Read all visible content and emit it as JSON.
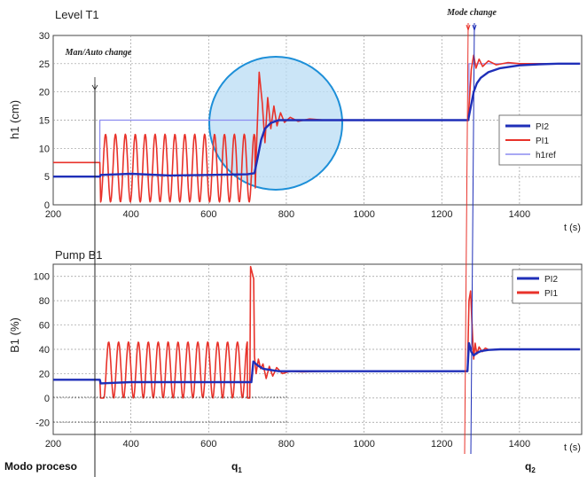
{
  "chart_data": [
    {
      "type": "line",
      "title": "Level T1",
      "ylabel": "h1 (cm)",
      "xlabel": "t (s)",
      "xlim": [
        200,
        1560
      ],
      "ylim": [
        0,
        30
      ],
      "xticks": [
        200,
        400,
        600,
        800,
        1000,
        1200,
        1400
      ],
      "yticks": [
        0,
        5,
        10,
        15,
        20,
        25,
        30
      ],
      "grid": true,
      "legend_position": "right",
      "series": [
        {
          "name": "PI2",
          "color": "#1f2fb8",
          "x": [
            200,
            320,
            322,
            400,
            500,
            600,
            700,
            718,
            725,
            735,
            745,
            760,
            780,
            800,
            840,
            900,
            1000,
            1100,
            1200,
            1268,
            1275,
            1282,
            1290,
            1300,
            1320,
            1350,
            1400,
            1450,
            1500,
            1556
          ],
          "y": [
            5,
            5,
            5.3,
            5.5,
            5.2,
            5.3,
            5.4,
            5.6,
            8,
            11.5,
            13.5,
            14.5,
            15,
            15,
            15,
            15,
            15,
            15,
            15,
            15,
            17.5,
            20,
            21.5,
            22.5,
            23.5,
            24.2,
            24.7,
            24.9,
            25,
            25
          ]
        },
        {
          "name": "PI1",
          "color": "#e8322a",
          "osc": {
            "start": 322,
            "end": 720,
            "period": 25.5,
            "min": 0.5,
            "max": 12.5
          },
          "x": [
            200,
            320,
            720,
            722,
            730,
            738,
            745,
            752,
            760,
            768,
            776,
            785,
            795,
            810,
            830,
            860,
            900,
            1000,
            1100,
            1200,
            1268,
            1276,
            1282,
            1288,
            1296,
            1305,
            1320,
            1340,
            1370,
            1400,
            1450,
            1500,
            1556
          ],
          "y": [
            7.5,
            7.5,
            3,
            8,
            23.5,
            18,
            11,
            19,
            13.5,
            17.5,
            14,
            16.3,
            14.6,
            15.5,
            14.8,
            15.2,
            15,
            15,
            15,
            15,
            15,
            24,
            26.5,
            24.2,
            25.8,
            24.5,
            25.5,
            24.8,
            25.2,
            25,
            25,
            25,
            25
          ]
        },
        {
          "name": "h1ref",
          "color": "#8c8cf0",
          "x": [
            200,
            320,
            320,
            1270,
            1270,
            1556
          ],
          "y": [
            7.5,
            7.5,
            15,
            15,
            25,
            25
          ]
        }
      ]
    },
    {
      "type": "line",
      "title": "Pump B1",
      "ylabel": "B1 (%)",
      "xlabel": "t (s)",
      "xlim": [
        200,
        1560
      ],
      "ylim": [
        -30,
        110
      ],
      "xticks": [
        200,
        400,
        600,
        800,
        1000,
        1200,
        1400
      ],
      "yticks": [
        -20,
        0,
        20,
        40,
        60,
        80,
        100
      ],
      "grid": true,
      "legend_position": "top-right",
      "series": [
        {
          "name": "PI2",
          "color": "#1f2fb8",
          "x": [
            200,
            320,
            322,
            400,
            500,
            600,
            700,
            710,
            715,
            725,
            740,
            760,
            780,
            800,
            900,
            1000,
            1100,
            1200,
            1266,
            1270,
            1276,
            1282,
            1290,
            1300,
            1320,
            1350,
            1400,
            1450,
            1500,
            1556
          ],
          "y": [
            15,
            15,
            12,
            13,
            13,
            13,
            13,
            13,
            30,
            27,
            24,
            23,
            22,
            22,
            22,
            22,
            22,
            22,
            22,
            45,
            38,
            35,
            37,
            38.5,
            39.5,
            40,
            40,
            40,
            40,
            40
          ]
        },
        {
          "name": "PI1",
          "color": "#e8322a",
          "osc": {
            "start": 330,
            "end": 700,
            "period": 25.5,
            "min": 0,
            "max": 46
          },
          "x": [
            200,
            320,
            322,
            330,
            700,
            706,
            708,
            716,
            718,
            722,
            728,
            734,
            740,
            748,
            756,
            765,
            775,
            790,
            810,
            840,
            900,
            1000,
            1100,
            1200,
            1266,
            1270,
            1274,
            1278,
            1282,
            1286,
            1290,
            1296,
            1304,
            1312,
            1322,
            1340,
            1370,
            1400,
            1450,
            1500,
            1556
          ],
          "y": [
            15,
            15,
            0,
            0,
            0,
            0,
            108,
            98,
            34,
            20,
            32,
            24,
            28,
            16,
            26,
            18,
            25,
            20,
            22,
            21.5,
            22,
            22,
            22,
            22,
            22,
            80,
            88,
            60,
            32,
            45,
            36,
            42,
            38,
            41,
            39.5,
            40,
            40,
            40,
            40,
            40,
            40
          ]
        }
      ]
    }
  ],
  "annotations": {
    "man_auto": "Man/Auto change",
    "mode_change": "Mode change",
    "modo_proceso": "Modo proceso",
    "q1": "q",
    "q1_sub": "1",
    "q2": "q",
    "q2_sub": "2"
  },
  "colors": {
    "highlight_circle_fill": "#b9dcf4",
    "highlight_circle_stroke": "#1d8fd8"
  }
}
